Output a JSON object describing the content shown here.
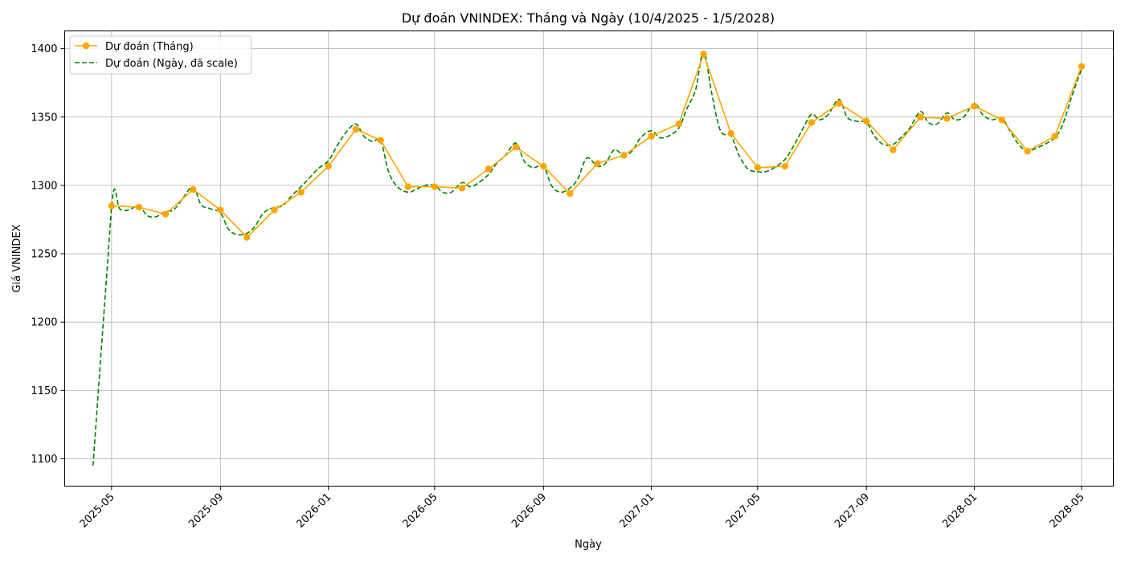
{
  "chart_data": {
    "type": "line",
    "title": "Dự đoán VNINDEX: Tháng và Ngày (10/4/2025 - 1/5/2028)",
    "xlabel": "Ngày",
    "ylabel": "Giá VNINDEX",
    "xlim": [
      "2025-03-09",
      "2028-06-06"
    ],
    "ylim": [
      1080,
      1413
    ],
    "grid": true,
    "legend_position": "top-left",
    "x_ticks": [
      "2025-05",
      "2025-09",
      "2026-01",
      "2026-05",
      "2026-09",
      "2027-01",
      "2027-05",
      "2027-09",
      "2028-01",
      "2028-05"
    ],
    "y_ticks": [
      1100,
      1150,
      1200,
      1250,
      1300,
      1350,
      1400
    ],
    "series": [
      {
        "name": "Dự đoán (Tháng)",
        "style": "line-markers",
        "color": "#FFA500",
        "x": [
          "2025-05-01",
          "2025-06-01",
          "2025-07-01",
          "2025-08-01",
          "2025-09-01",
          "2025-10-01",
          "2025-11-01",
          "2025-12-01",
          "2026-01-01",
          "2026-02-01",
          "2026-03-01",
          "2026-04-01",
          "2026-05-01",
          "2026-06-01",
          "2026-07-01",
          "2026-08-01",
          "2026-09-01",
          "2026-10-01",
          "2026-11-01",
          "2026-12-01",
          "2027-01-01",
          "2027-02-01",
          "2027-03-01",
          "2027-04-01",
          "2027-05-01",
          "2027-06-01",
          "2027-07-01",
          "2027-08-01",
          "2027-09-01",
          "2027-10-01",
          "2027-11-01",
          "2027-12-01",
          "2028-01-01",
          "2028-02-01",
          "2028-03-01",
          "2028-04-01",
          "2028-05-01"
        ],
        "values": [
          1285,
          1284,
          1279,
          1297,
          1282,
          1262,
          1282,
          1295,
          1314,
          1341,
          1333,
          1299,
          1299,
          1298,
          1312,
          1328,
          1314,
          1294,
          1316,
          1322,
          1336,
          1345,
          1396,
          1338,
          1313,
          1314,
          1346,
          1360,
          1347,
          1326,
          1350,
          1349,
          1358,
          1348,
          1325,
          1336,
          1387
        ]
      },
      {
        "name": "Dự đoán (Ngày, đã scale)",
        "style": "dashed",
        "color": "#008000",
        "x": [
          "2025-04-10",
          "2025-04-25",
          "2025-05-03",
          "2025-05-10",
          "2025-05-20",
          "2025-06-01",
          "2025-06-10",
          "2025-06-20",
          "2025-07-01",
          "2025-07-10",
          "2025-07-20",
          "2025-08-01",
          "2025-08-10",
          "2025-08-20",
          "2025-09-01",
          "2025-09-10",
          "2025-09-20",
          "2025-10-01",
          "2025-10-10",
          "2025-10-20",
          "2025-11-01",
          "2025-11-10",
          "2025-11-20",
          "2025-12-01",
          "2025-12-10",
          "2025-12-20",
          "2026-01-01",
          "2026-01-10",
          "2026-01-20",
          "2026-02-01",
          "2026-02-10",
          "2026-02-20",
          "2026-03-01",
          "2026-03-10",
          "2026-03-20",
          "2026-04-01",
          "2026-04-10",
          "2026-04-20",
          "2026-05-01",
          "2026-05-10",
          "2026-05-20",
          "2026-06-01",
          "2026-06-10",
          "2026-06-20",
          "2026-07-01",
          "2026-07-10",
          "2026-07-20",
          "2026-08-01",
          "2026-08-10",
          "2026-08-20",
          "2026-09-01",
          "2026-09-10",
          "2026-09-20",
          "2026-10-01",
          "2026-10-10",
          "2026-10-20",
          "2026-11-01",
          "2026-11-10",
          "2026-11-20",
          "2026-12-01",
          "2026-12-10",
          "2026-12-20",
          "2027-01-01",
          "2027-01-10",
          "2027-01-20",
          "2027-02-01",
          "2027-02-10",
          "2027-02-20",
          "2027-03-01",
          "2027-03-10",
          "2027-03-20",
          "2027-04-01",
          "2027-04-10",
          "2027-04-20",
          "2027-05-01",
          "2027-05-10",
          "2027-05-20",
          "2027-06-01",
          "2027-06-10",
          "2027-06-20",
          "2027-07-01",
          "2027-07-10",
          "2027-07-20",
          "2027-08-01",
          "2027-08-10",
          "2027-08-20",
          "2027-09-01",
          "2027-09-10",
          "2027-09-20",
          "2027-10-01",
          "2027-10-10",
          "2027-10-20",
          "2027-11-01",
          "2027-11-10",
          "2027-11-20",
          "2027-12-01",
          "2027-12-10",
          "2027-12-20",
          "2028-01-01",
          "2028-01-10",
          "2028-01-20",
          "2028-02-01",
          "2028-02-10",
          "2028-02-20",
          "2028-03-01",
          "2028-03-10",
          "2028-03-20",
          "2028-04-01",
          "2028-04-10",
          "2028-04-20",
          "2028-05-01"
        ],
        "values": [
          1095,
          1230,
          1295,
          1283,
          1282,
          1285,
          1278,
          1277,
          1281,
          1282,
          1290,
          1299,
          1286,
          1283,
          1280,
          1268,
          1264,
          1265,
          1270,
          1280,
          1284,
          1285,
          1292,
          1299,
          1305,
          1312,
          1318,
          1328,
          1338,
          1345,
          1336,
          1332,
          1333,
          1310,
          1299,
          1295,
          1297,
          1300,
          1300,
          1295,
          1295,
          1302,
          1299,
          1302,
          1308,
          1316,
          1322,
          1331,
          1318,
          1313,
          1314,
          1300,
          1295,
          1298,
          1305,
          1320,
          1314,
          1316,
          1326,
          1322,
          1325,
          1335,
          1340,
          1335,
          1336,
          1342,
          1356,
          1370,
          1398,
          1368,
          1340,
          1336,
          1322,
          1312,
          1310,
          1310,
          1313,
          1319,
          1328,
          1340,
          1352,
          1348,
          1352,
          1363,
          1350,
          1347,
          1346,
          1336,
          1330,
          1330,
          1335,
          1342,
          1354,
          1346,
          1345,
          1353,
          1348,
          1350,
          1360,
          1352,
          1348,
          1349,
          1340,
          1330,
          1325,
          1327,
          1330,
          1335,
          1345,
          1365,
          1385
        ]
      }
    ]
  }
}
